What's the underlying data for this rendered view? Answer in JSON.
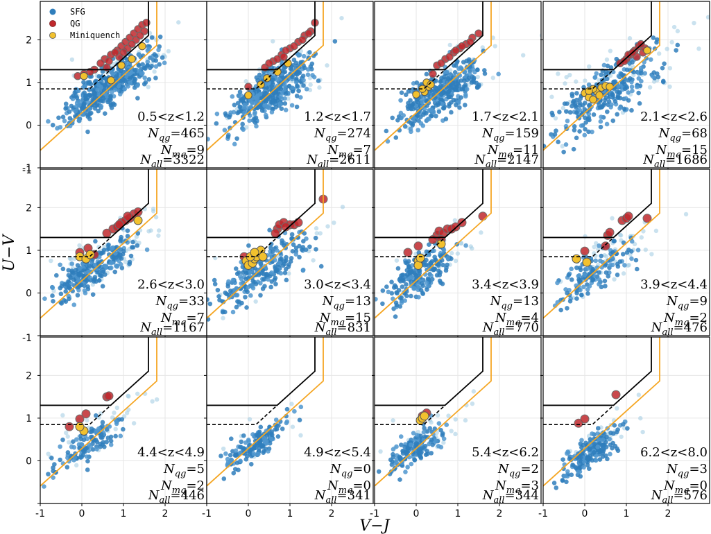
{
  "chart_data": {
    "type": "scatter",
    "figure": "UVJ color-color diagram in redshift bins",
    "xlabel": "V−J",
    "ylabel": "U−V",
    "xlim": [
      -1,
      3.0
    ],
    "ylim": [
      -1,
      2.9
    ],
    "x_ticks": [
      "-1",
      "0",
      "1",
      "2"
    ],
    "y_ticks": [
      "-1",
      "0",
      "1",
      "2"
    ],
    "legend": {
      "location": "top-left of first panel",
      "entries": [
        {
          "label": "SFG",
          "color": "#2f7ebc"
        },
        {
          "label": "QG",
          "color": "#c0282d"
        },
        {
          "label": "Miniquench",
          "color": "#f2c12e"
        }
      ]
    },
    "colors": {
      "sfg": "#2f7ebc",
      "qg": "#c0282d",
      "miniquench": "#f2c12e",
      "orange_line": "#f5a623",
      "black_line": "#000000"
    },
    "selection_lines": {
      "black_solid": [
        [
          -1,
          1.3
        ],
        [
          0.6917,
          1.3
        ],
        [
          1.6,
          2.1
        ],
        [
          1.6,
          2.9
        ]
      ],
      "black_dashed": [
        [
          -1,
          0.85
        ],
        [
          0.1833,
          0.85
        ],
        [
          0.6917,
          1.3
        ]
      ],
      "orange": [
        [
          -1,
          -0.59
        ],
        [
          1.8,
          1.87
        ],
        [
          1.8,
          2.9
        ]
      ]
    },
    "panels": [
      {
        "zbin": "0.5<z<1.2",
        "N_qg": "465",
        "N_mq": "9",
        "N_all": "3322",
        "sfg_center": [
          0.6,
          0.9
        ],
        "sfg_spread": [
          0.55,
          0.35
        ],
        "sfg_count": 420,
        "faint_count": 40,
        "qg": [
          [
            0.55,
            1.55
          ],
          [
            0.7,
            1.65
          ],
          [
            0.85,
            1.75
          ],
          [
            0.95,
            1.85
          ],
          [
            1.05,
            1.95
          ],
          [
            1.15,
            2.05
          ],
          [
            1.25,
            2.15
          ],
          [
            1.35,
            2.25
          ],
          [
            1.45,
            2.35
          ],
          [
            0.3,
            1.3
          ],
          [
            -0.1,
            1.15
          ],
          [
            0.45,
            1.45
          ],
          [
            0.9,
            1.6
          ],
          [
            1.1,
            1.8
          ],
          [
            1.3,
            2.0
          ],
          [
            1.5,
            2.2
          ],
          [
            0.65,
            1.5
          ],
          [
            0.8,
            1.7
          ],
          [
            1.2,
            1.9
          ],
          [
            1.0,
            1.7
          ],
          [
            0.6,
            1.35
          ],
          [
            1.4,
            2.1
          ],
          [
            1.55,
            2.4
          ],
          [
            0.2,
            1.25
          ],
          [
            0.05,
            1.2
          ]
        ],
        "mq": [
          [
            1.45,
            1.85
          ],
          [
            0.7,
            1.05
          ],
          [
            0.05,
            1.15
          ],
          [
            1.2,
            1.55
          ],
          [
            0.95,
            1.4
          ]
        ]
      },
      {
        "zbin": "1.2<z<1.7",
        "N_qg": "274",
        "N_mq": "7",
        "N_all": "2611",
        "sfg_center": [
          0.55,
          0.8
        ],
        "sfg_spread": [
          0.5,
          0.4
        ],
        "sfg_count": 380,
        "faint_count": 40,
        "qg": [
          [
            0.4,
            1.35
          ],
          [
            0.6,
            1.5
          ],
          [
            0.8,
            1.65
          ],
          [
            1.0,
            1.8
          ],
          [
            1.2,
            1.95
          ],
          [
            1.35,
            2.1
          ],
          [
            1.5,
            2.2
          ],
          [
            1.6,
            2.4
          ],
          [
            0.9,
            1.75
          ],
          [
            1.1,
            1.85
          ],
          [
            0.7,
            1.55
          ],
          [
            1.3,
            2.0
          ],
          [
            0.5,
            1.45
          ],
          [
            0.0,
            0.9
          ],
          [
            1.45,
            2.15
          ],
          [
            0.85,
            1.6
          ]
        ],
        "mq": [
          [
            0.45,
            1.1
          ],
          [
            0.7,
            1.25
          ],
          [
            0.0,
            0.7
          ],
          [
            0.95,
            1.45
          ],
          [
            0.3,
            0.95
          ]
        ]
      },
      {
        "zbin": "1.7<z<2.1",
        "N_qg": "159",
        "N_mq": "11",
        "N_all": "2147",
        "sfg_center": [
          0.55,
          0.75
        ],
        "sfg_spread": [
          0.5,
          0.4
        ],
        "sfg_count": 340,
        "faint_count": 35,
        "qg": [
          [
            0.5,
            1.4
          ],
          [
            0.7,
            1.55
          ],
          [
            0.9,
            1.7
          ],
          [
            1.05,
            1.8
          ],
          [
            1.2,
            1.9
          ],
          [
            1.35,
            2.05
          ],
          [
            1.5,
            2.15
          ],
          [
            0.8,
            1.6
          ],
          [
            1.1,
            1.85
          ],
          [
            0.6,
            1.45
          ],
          [
            1.3,
            1.95
          ],
          [
            0.95,
            1.75
          ],
          [
            0.4,
            1.2
          ]
        ],
        "mq": [
          [
            0.0,
            0.72
          ],
          [
            0.2,
            0.78
          ],
          [
            0.3,
            0.9
          ],
          [
            0.25,
            1.0
          ],
          [
            0.15,
            0.85
          ],
          [
            0.35,
            0.95
          ]
        ]
      },
      {
        "zbin": "2.1<z<2.6",
        "N_qg": "68",
        "N_mq": "15",
        "N_all": "1686",
        "sfg_center": [
          0.6,
          0.75
        ],
        "sfg_spread": [
          0.6,
          0.45
        ],
        "sfg_count": 260,
        "faint_count": 70,
        "qg": [
          [
            0.85,
            1.45
          ],
          [
            1.0,
            1.55
          ],
          [
            1.1,
            1.65
          ],
          [
            1.2,
            1.75
          ],
          [
            1.3,
            1.85
          ],
          [
            1.4,
            1.7
          ],
          [
            1.45,
            1.8
          ],
          [
            0.95,
            1.5
          ],
          [
            1.05,
            1.65
          ],
          [
            1.25,
            1.6
          ],
          [
            1.35,
            1.9
          ],
          [
            1.15,
            1.7
          ]
        ],
        "mq": [
          [
            0.0,
            0.75
          ],
          [
            0.1,
            0.65
          ],
          [
            0.2,
            0.6
          ],
          [
            0.3,
            0.78
          ],
          [
            0.4,
            0.88
          ],
          [
            0.5,
            0.92
          ],
          [
            0.2,
            0.85
          ],
          [
            0.6,
            0.9
          ],
          [
            0.1,
            0.8
          ],
          [
            0.35,
            0.7
          ],
          [
            1.5,
            1.75
          ]
        ]
      },
      {
        "zbin": "2.6<z<3.0",
        "N_qg": "33",
        "N_mq": "7",
        "N_all": "1167",
        "sfg_center": [
          0.3,
          0.6
        ],
        "sfg_spread": [
          0.5,
          0.35
        ],
        "sfg_count": 260,
        "faint_count": 55,
        "qg": [
          [
            0.75,
            1.5
          ],
          [
            0.85,
            1.55
          ],
          [
            0.95,
            1.65
          ],
          [
            1.05,
            1.7
          ],
          [
            1.15,
            1.75
          ],
          [
            1.25,
            1.85
          ],
          [
            1.35,
            1.9
          ],
          [
            0.9,
            1.6
          ],
          [
            1.1,
            1.8
          ],
          [
            0.6,
            1.4
          ],
          [
            0.15,
            1.05
          ],
          [
            -0.05,
            0.95
          ],
          [
            0.3,
            0.9
          ]
        ],
        "mq": [
          [
            -0.05,
            0.85
          ],
          [
            0.1,
            0.8
          ],
          [
            1.35,
            1.7
          ],
          [
            0.2,
            0.9
          ]
        ]
      },
      {
        "zbin": "3.0<z<3.4",
        "N_qg": "13",
        "N_mq": "15",
        "N_all": "831",
        "sfg_center": [
          0.4,
          0.55
        ],
        "sfg_spread": [
          0.55,
          0.4
        ],
        "sfg_count": 230,
        "faint_count": 25,
        "qg": [
          [
            0.7,
            1.5
          ],
          [
            0.75,
            1.6
          ],
          [
            0.85,
            1.65
          ],
          [
            1.0,
            1.6
          ],
          [
            1.1,
            1.6
          ],
          [
            1.2,
            1.65
          ],
          [
            0.9,
            1.55
          ],
          [
            0.65,
            1.4
          ],
          [
            1.8,
            2.2
          ],
          [
            -0.1,
            0.85
          ],
          [
            0.2,
            0.9
          ]
        ],
        "mq": [
          [
            -0.05,
            0.75
          ],
          [
            0.0,
            0.65
          ],
          [
            0.1,
            0.7
          ],
          [
            0.15,
            0.8
          ],
          [
            0.2,
            0.85
          ],
          [
            0.25,
            0.95
          ],
          [
            0.3,
            1.0
          ],
          [
            0.35,
            0.85
          ],
          [
            0.05,
            0.85
          ],
          [
            0.15,
            0.95
          ]
        ]
      },
      {
        "zbin": "3.4<z<3.9",
        "N_qg": "13",
        "N_mq": "4",
        "N_all": "770",
        "sfg_center": [
          0.1,
          0.45
        ],
        "sfg_spread": [
          0.4,
          0.35
        ],
        "sfg_count": 200,
        "faint_count": 25,
        "qg": [
          [
            0.5,
            1.35
          ],
          [
            0.55,
            1.45
          ],
          [
            0.65,
            1.4
          ],
          [
            0.75,
            1.5
          ],
          [
            0.85,
            1.5
          ],
          [
            0.95,
            1.55
          ],
          [
            1.1,
            1.65
          ],
          [
            1.6,
            1.8
          ],
          [
            0.4,
            1.25
          ],
          [
            -0.2,
            0.95
          ],
          [
            0.05,
            1.1
          ],
          [
            0.6,
            1.25
          ]
        ],
        "mq": [
          [
            0.05,
            0.75
          ],
          [
            0.05,
            0.65
          ],
          [
            0.6,
            1.15
          ],
          [
            0.1,
            0.82
          ]
        ]
      },
      {
        "zbin": "3.9<z<4.4",
        "N_qg": "9",
        "N_mq": "2",
        "N_all": "476",
        "sfg_center": [
          0.3,
          0.5
        ],
        "sfg_spread": [
          0.45,
          0.35
        ],
        "sfg_count": 140,
        "faint_count": 50,
        "qg": [
          [
            0.55,
            1.35
          ],
          [
            0.6,
            1.42
          ],
          [
            0.9,
            1.7
          ],
          [
            1.0,
            1.75
          ],
          [
            1.05,
            1.8
          ],
          [
            1.5,
            1.75
          ],
          [
            0.5,
            1.1
          ],
          [
            0.0,
            0.98
          ]
        ],
        "mq": [
          [
            -0.2,
            0.8
          ],
          [
            0.05,
            0.72
          ]
        ]
      },
      {
        "zbin": "4.4<z<4.9",
        "N_qg": "5",
        "N_mq": "2",
        "N_all": "446",
        "sfg_center": [
          0.1,
          0.35
        ],
        "sfg_spread": [
          0.4,
          0.3
        ],
        "sfg_count": 120,
        "faint_count": 40,
        "qg": [
          [
            0.6,
            1.5
          ],
          [
            0.65,
            1.52
          ],
          [
            0.1,
            1.1
          ],
          [
            -0.05,
            0.98
          ],
          [
            -0.3,
            0.8
          ]
        ],
        "mq": [
          [
            0.05,
            0.7
          ],
          [
            -0.05,
            0.8
          ]
        ]
      },
      {
        "zbin": "4.9<z<5.4",
        "N_qg": "0",
        "N_mq": "0",
        "N_all": "341",
        "sfg_center": [
          0.2,
          0.4
        ],
        "sfg_spread": [
          0.4,
          0.25
        ],
        "sfg_count": 150,
        "faint_count": 10,
        "qg": [],
        "mq": []
      },
      {
        "zbin": "5.4<z<6.2",
        "N_qg": "2",
        "N_mq": "3",
        "N_all": "344",
        "sfg_center": [
          0.0,
          0.3
        ],
        "sfg_spread": [
          0.35,
          0.28
        ],
        "sfg_count": 140,
        "faint_count": 30,
        "qg": [
          [
            0.15,
            1.05
          ],
          [
            0.25,
            1.12
          ]
        ],
        "mq": [
          [
            0.1,
            0.95
          ],
          [
            0.15,
            1.0
          ],
          [
            0.2,
            1.05
          ]
        ]
      },
      {
        "zbin": "6.2<z<8.0",
        "N_qg": "3",
        "N_mq": "0",
        "N_all": "576",
        "sfg_center": [
          0.1,
          0.2
        ],
        "sfg_spread": [
          0.35,
          0.25
        ],
        "sfg_count": 200,
        "faint_count": 30,
        "qg": [
          [
            -0.15,
            0.88
          ],
          [
            0.0,
            0.98
          ],
          [
            0.75,
            1.55
          ]
        ],
        "mq": []
      }
    ]
  }
}
